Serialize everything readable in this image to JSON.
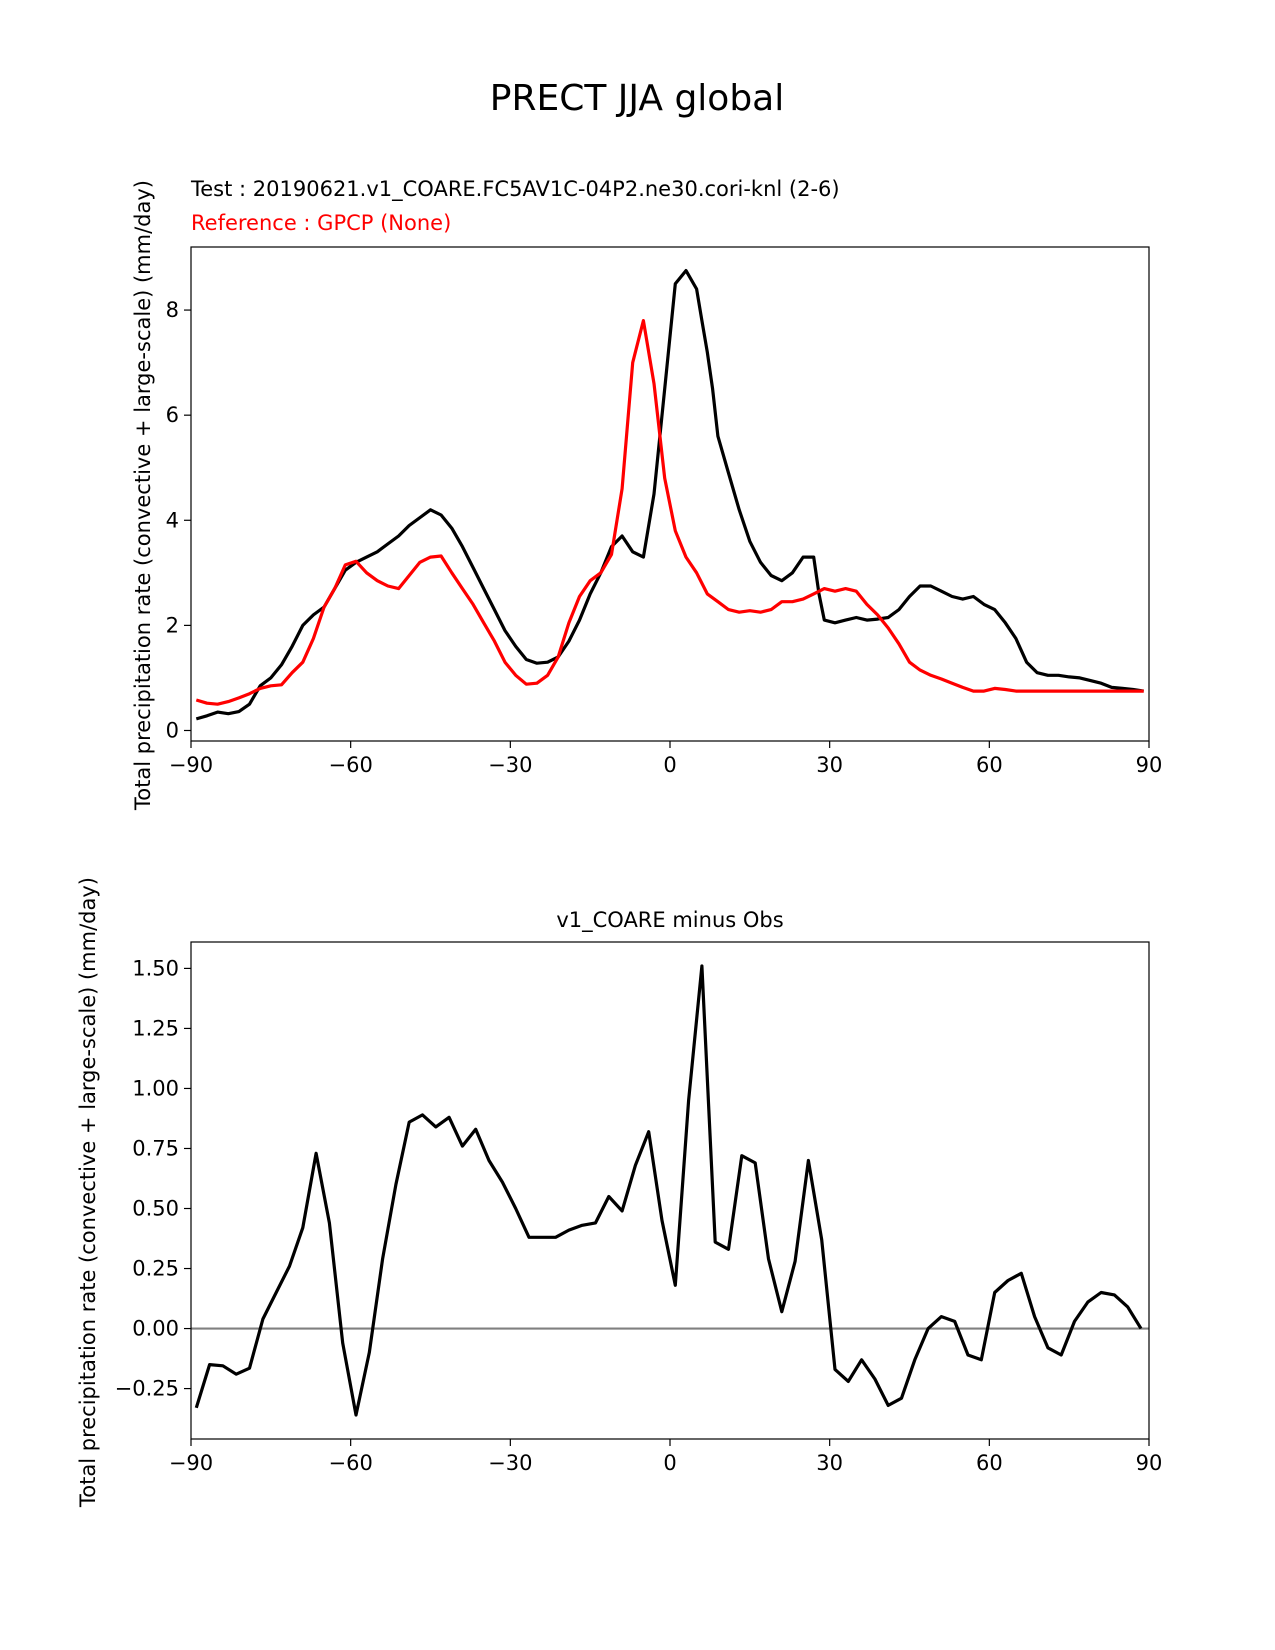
{
  "figure": {
    "suptitle": "PRECT JJA global"
  },
  "chart_data": [
    {
      "type": "line",
      "test_label": "Test : 20190621.v1_COARE.FC5AV1C-04P2.ne30.cori-knl (2-6)",
      "reference_label": "Reference : GPCP (None)",
      "xlabel": "",
      "ylabel": "Total precipitation rate (convective + large-scale) (mm/day)",
      "xlim": [
        -90,
        90
      ],
      "ylim": [
        -0.2,
        9.2
      ],
      "xticks": [
        "−90",
        "−60",
        "−30",
        "0",
        "30",
        "60",
        "90"
      ],
      "xtick_values": [
        -90,
        -60,
        -30,
        0,
        30,
        60,
        90
      ],
      "yticks": [
        "0",
        "2",
        "4",
        "6",
        "8"
      ],
      "ytick_values": [
        0,
        2,
        4,
        6,
        8
      ],
      "grid": false,
      "series": [
        {
          "color": "#000000",
          "x": [
            -89,
            -87,
            -85,
            -83,
            -81,
            -79,
            -77,
            -75,
            -73,
            -71,
            -69,
            -67,
            -65,
            -63,
            -61,
            -59,
            -57,
            -55,
            -53,
            -51,
            -49,
            -47,
            -45,
            -43,
            -41,
            -39,
            -37,
            -35,
            -33,
            -31,
            -29,
            -27,
            -25,
            -23,
            -21,
            -19,
            -17,
            -15,
            -13,
            -11,
            -9,
            -7,
            -5,
            -3,
            -1,
            1,
            3,
            5,
            6,
            7,
            8,
            9,
            11,
            13,
            15,
            17,
            19,
            21,
            23,
            25,
            27,
            28,
            29,
            31,
            33,
            35,
            37,
            39,
            41,
            43,
            45,
            47,
            49,
            51,
            53,
            55,
            57,
            59,
            61,
            63,
            65,
            67,
            69,
            71,
            73,
            75,
            77,
            79,
            81,
            83,
            85,
            87,
            89
          ],
          "y": [
            0.22,
            0.28,
            0.35,
            0.32,
            0.36,
            0.5,
            0.85,
            1.0,
            1.25,
            1.6,
            2.0,
            2.2,
            2.35,
            2.7,
            3.05,
            3.2,
            3.3,
            3.4,
            3.55,
            3.7,
            3.9,
            4.05,
            4.2,
            4.1,
            3.85,
            3.5,
            3.1,
            2.7,
            2.3,
            1.9,
            1.6,
            1.35,
            1.28,
            1.3,
            1.4,
            1.7,
            2.1,
            2.6,
            3.0,
            3.5,
            3.7,
            3.4,
            3.3,
            4.5,
            6.5,
            8.5,
            8.75,
            8.4,
            7.8,
            7.2,
            6.5,
            5.6,
            4.9,
            4.2,
            3.6,
            3.2,
            2.95,
            2.85,
            3.0,
            3.3,
            3.3,
            2.6,
            2.1,
            2.05,
            2.1,
            2.15,
            2.1,
            2.12,
            2.15,
            2.3,
            2.55,
            2.75,
            2.75,
            2.65,
            2.55,
            2.5,
            2.55,
            2.4,
            2.3,
            2.05,
            1.75,
            1.3,
            1.1,
            1.05,
            1.05,
            1.02,
            1.0,
            0.95,
            0.9,
            0.82,
            0.8,
            0.78,
            0.75
          ]
        },
        {
          "color": "#ff0000",
          "x": [
            -89,
            -87,
            -85,
            -83,
            -81,
            -79,
            -77,
            -75,
            -73,
            -71,
            -69,
            -67,
            -65,
            -63,
            -61,
            -59,
            -57,
            -55,
            -53,
            -51,
            -49,
            -47,
            -45,
            -43,
            -41,
            -39,
            -37,
            -35,
            -33,
            -31,
            -29,
            -27,
            -25,
            -23,
            -21,
            -19,
            -17,
            -15,
            -13,
            -11,
            -9,
            -7,
            -5,
            -3,
            -1,
            1,
            3,
            5,
            7,
            9,
            11,
            13,
            15,
            17,
            19,
            21,
            23,
            25,
            27,
            29,
            31,
            33,
            35,
            37,
            39,
            41,
            43,
            45,
            47,
            49,
            51,
            53,
            55,
            57,
            59,
            61,
            63,
            65,
            67,
            69,
            71,
            73,
            75,
            77,
            79,
            81,
            83,
            85,
            87,
            89
          ],
          "y": [
            0.58,
            0.52,
            0.5,
            0.55,
            0.62,
            0.7,
            0.8,
            0.85,
            0.87,
            1.1,
            1.3,
            1.75,
            2.35,
            2.7,
            3.15,
            3.22,
            3.0,
            2.85,
            2.75,
            2.7,
            2.95,
            3.2,
            3.3,
            3.32,
            3.0,
            2.7,
            2.4,
            2.05,
            1.7,
            1.3,
            1.05,
            0.88,
            0.9,
            1.05,
            1.4,
            2.05,
            2.55,
            2.85,
            3.0,
            3.35,
            4.6,
            7.0,
            7.8,
            6.6,
            4.8,
            3.8,
            3.3,
            3.0,
            2.6,
            2.45,
            2.3,
            2.25,
            2.28,
            2.25,
            2.3,
            2.45,
            2.45,
            2.5,
            2.6,
            2.7,
            2.65,
            2.7,
            2.65,
            2.4,
            2.2,
            1.95,
            1.65,
            1.3,
            1.15,
            1.05,
            0.98,
            0.9,
            0.82,
            0.75,
            0.75,
            0.8,
            0.78,
            0.75,
            0.75,
            0.75,
            0.75,
            0.75,
            0.75,
            0.75,
            0.75,
            0.75,
            0.75,
            0.75,
            0.75,
            0.75
          ]
        }
      ]
    },
    {
      "type": "line",
      "title": "v1_COARE minus Obs",
      "xlabel": "",
      "ylabel": "Total precipitation rate (convective + large-scale) (mm/day)",
      "xlim": [
        -90,
        90
      ],
      "ylim": [
        -0.46,
        1.61
      ],
      "xticks": [
        "−90",
        "−60",
        "−30",
        "0",
        "30",
        "60",
        "90"
      ],
      "xtick_values": [
        -90,
        -60,
        -30,
        0,
        30,
        60,
        90
      ],
      "yticks": [
        "−0.25",
        "0.00",
        "0.25",
        "0.50",
        "0.75",
        "1.00",
        "1.25",
        "1.50"
      ],
      "ytick_values": [
        -0.25,
        0,
        0.25,
        0.5,
        0.75,
        1.0,
        1.25,
        1.5
      ],
      "grid": false,
      "zero_line": true,
      "series": [
        {
          "color": "#000000",
          "x": [
            -89,
            -86.5,
            -84,
            -81.5,
            -79,
            -76.5,
            -74,
            -71.5,
            -69,
            -66.5,
            -64,
            -61.5,
            -59,
            -56.5,
            -54,
            -51.5,
            -49,
            -46.5,
            -44,
            -41.5,
            -39,
            -36.5,
            -34,
            -31.5,
            -29,
            -26.5,
            -24,
            -21.5,
            -19,
            -16.5,
            -14,
            -11.5,
            -9,
            -6.5,
            -4,
            -1.5,
            1,
            3.5,
            6,
            8.5,
            11,
            13.5,
            16,
            18.5,
            21,
            23.5,
            26,
            28.5,
            31,
            33.5,
            36,
            38.5,
            41,
            43.5,
            46,
            48.5,
            51,
            53.5,
            56,
            58.5,
            61,
            63.5,
            66,
            68.5,
            71,
            73.5,
            76,
            78.5,
            81,
            83.5,
            86,
            88.5
          ],
          "y": [
            -0.33,
            -0.15,
            -0.155,
            -0.19,
            -0.165,
            0.04,
            0.15,
            0.26,
            0.42,
            0.73,
            0.44,
            -0.06,
            -0.36,
            -0.1,
            0.29,
            0.6,
            0.86,
            0.89,
            0.84,
            0.88,
            0.76,
            0.83,
            0.7,
            0.61,
            0.5,
            0.38,
            0.38,
            0.38,
            0.41,
            0.43,
            0.44,
            0.55,
            0.49,
            0.68,
            0.82,
            0.45,
            0.18,
            0.95,
            1.51,
            0.36,
            0.33,
            0.72,
            0.69,
            0.29,
            0.07,
            0.28,
            0.7,
            0.37,
            -0.17,
            -0.22,
            -0.13,
            -0.21,
            -0.32,
            -0.29,
            -0.13,
            0.0,
            0.05,
            0.03,
            -0.11,
            -0.13,
            0.15,
            0.2,
            0.23,
            0.05,
            -0.08,
            -0.11,
            0.03,
            0.11,
            0.15,
            0.14,
            0.09,
            0.0
          ]
        }
      ]
    }
  ]
}
